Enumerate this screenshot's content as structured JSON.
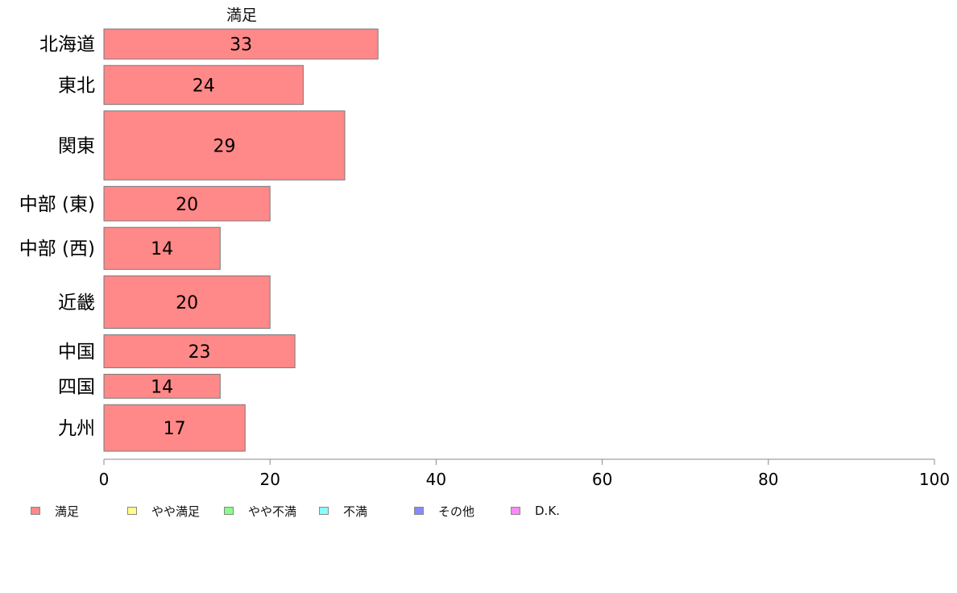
{
  "chart_data": {
    "type": "bar",
    "orientation": "horizontal",
    "title": "満足",
    "categories": [
      "北海道",
      "東北",
      "関東",
      "中部 (東)",
      "中部 (西)",
      "近畿",
      "中国",
      "四国",
      "九州"
    ],
    "series": [
      {
        "name": "満足",
        "values": [
          33,
          24,
          29,
          20,
          14,
          20,
          23,
          14,
          17
        ],
        "color": "#ff8888"
      }
    ],
    "data_labels": [
      "33",
      "24",
      "29",
      "20",
      "14",
      "20",
      "23",
      "14",
      "17"
    ],
    "bar_weights": [
      1.0,
      1.3,
      2.3,
      1.15,
      1.4,
      1.75,
      1.1,
      0.8,
      1.55
    ],
    "xlim": [
      0,
      100
    ],
    "x_ticks": [
      0,
      20,
      40,
      60,
      80,
      100
    ],
    "x_tick_labels": [
      "0",
      "20",
      "40",
      "60",
      "80",
      "100"
    ],
    "xlabel": "",
    "ylabel": "",
    "grid": false,
    "legend_position": "bottom-left",
    "legend": [
      {
        "label": "満足",
        "color": "#ff8888"
      },
      {
        "label": "やや満足",
        "color": "#ffff88"
      },
      {
        "label": "やや不満",
        "color": "#88ff88"
      },
      {
        "label": "不満",
        "color": "#88ffff"
      },
      {
        "label": "その他",
        "color": "#8888ff"
      },
      {
        "label": "D.K.",
        "color": "#ff88ff"
      }
    ]
  }
}
